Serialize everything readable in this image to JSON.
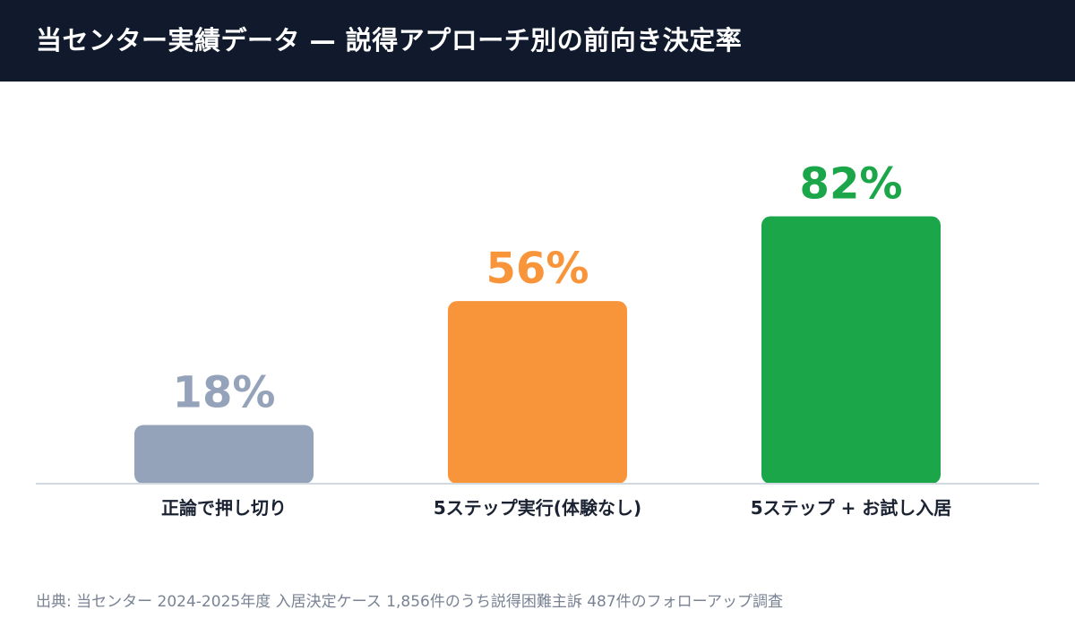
{
  "header": {
    "title": "当センター実績データ — 説得アプローチ別の前向き決定率"
  },
  "chart_data": {
    "type": "bar",
    "categories": [
      "正論で押し切り",
      "5ステップ実行(体験なし)",
      "5ステップ + お試し入居"
    ],
    "values": [
      18,
      56,
      82
    ],
    "data_labels": [
      "18%",
      "56%",
      "82%"
    ],
    "colors": [
      "#95a3ba",
      "#f8953b",
      "#1ba64a"
    ],
    "label_colors": [
      "#95a3ba",
      "#f8953b",
      "#1ba64a"
    ],
    "ylim": [
      0,
      100
    ],
    "grid": false,
    "title": "",
    "xlabel": "",
    "ylabel": ""
  },
  "footer": {
    "source": "出典: 当センター 2024-2025年度 入居決定ケース 1,856件のうち説得困難主訴 487件のフォローアップ調査"
  }
}
